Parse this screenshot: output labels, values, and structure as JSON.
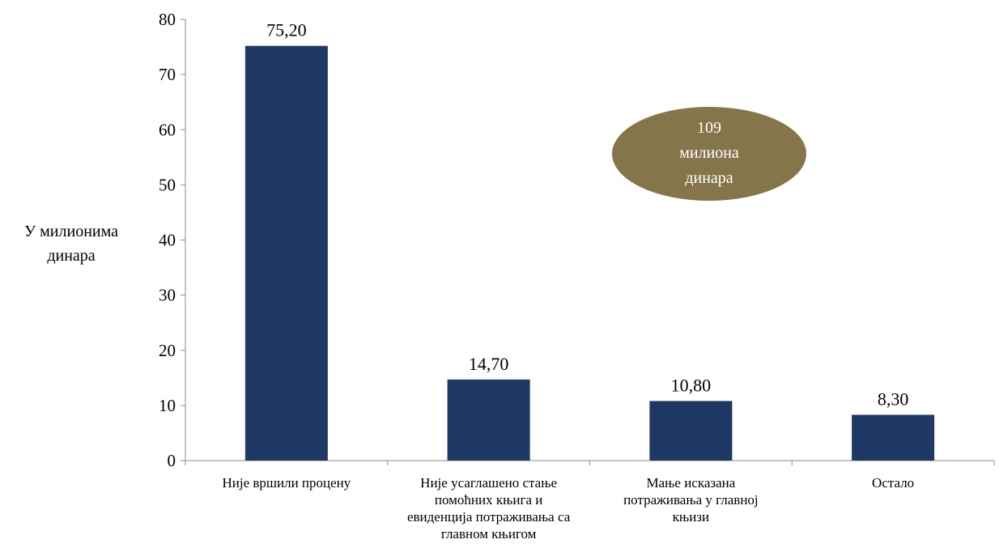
{
  "chart_data": {
    "type": "bar",
    "categories": [
      [
        "Није вршили процену"
      ],
      [
        "Није усаглашено стање",
        "помоћних књига и",
        "евиденција потраживања са",
        "главном књигом"
      ],
      [
        "Мање исказана",
        "потраживања у главној",
        "књизи"
      ],
      [
        "Остало"
      ]
    ],
    "values": [
      75.2,
      14.7,
      10.8,
      8.3
    ],
    "data_labels": [
      "75,20",
      "14,70",
      "10,80",
      "8,30"
    ],
    "ylabel": [
      "У милионима",
      "динара"
    ],
    "ylim": [
      0,
      80
    ],
    "yticks": [
      0,
      10,
      20,
      30,
      40,
      50,
      60,
      70,
      80
    ],
    "grid": false,
    "bar_color": "#1f3864",
    "axis_color": "#8c8c8c",
    "annotation": {
      "lines": [
        "109",
        "милиона",
        "динара"
      ],
      "fill_color": "#85754b",
      "text_color": "#ffffff"
    }
  }
}
